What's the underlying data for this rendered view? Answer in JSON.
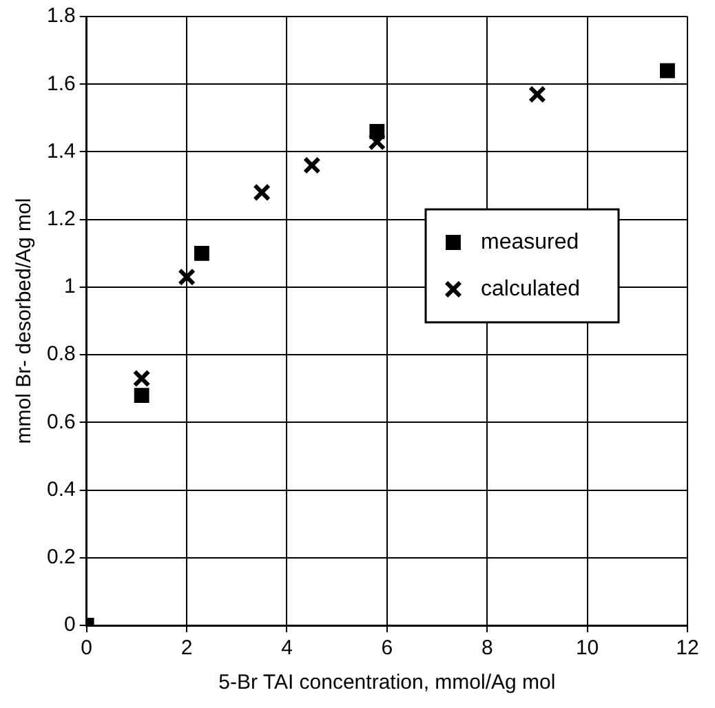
{
  "chart_data": {
    "type": "scatter",
    "xlabel": "5-Br TAI concentration, mmol/Ag mol",
    "ylabel": "mmol Br- desorbed/Ag mol",
    "xlim": [
      0,
      12
    ],
    "xticks": [
      0,
      2,
      4,
      6,
      8,
      10,
      12
    ],
    "ylim": [
      0,
      1.8
    ],
    "yticks": [
      0,
      0.2,
      0.4,
      0.6,
      0.8,
      1,
      1.2,
      1.4,
      1.6,
      1.8
    ],
    "grid": true,
    "legend": "right",
    "series": [
      {
        "name": "measured",
        "color": "#000000",
        "marker": "square",
        "x": [
          0,
          1.1,
          2.3,
          5.8,
          11.6
        ],
        "values": [
          0,
          0.68,
          1.1,
          1.46,
          1.64
        ]
      },
      {
        "name": "calculated",
        "color": "#000000",
        "marker": "cross",
        "x": [
          1.1,
          2.0,
          3.5,
          4.5,
          5.8,
          9.0
        ],
        "values": [
          0.73,
          1.03,
          1.28,
          1.36,
          1.43,
          1.57
        ]
      }
    ]
  }
}
